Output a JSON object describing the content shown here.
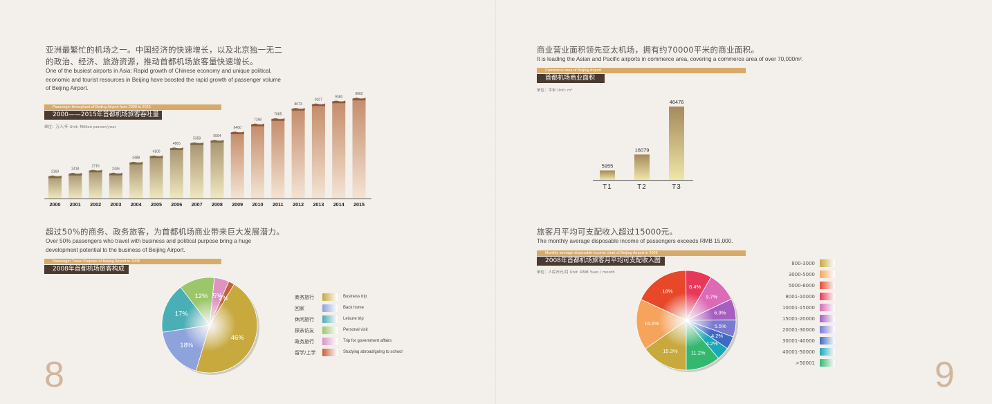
{
  "page_left": {
    "number": "8",
    "section1": {
      "cn": "亚洲最繁忙的机场之一。中国经济的快速增长，以及北京独一无二的政治、经济、旅游资源，推动首都机场旅客量快速增长。",
      "en": "One of the busiest airports in Asia: Rapid growth of Chinese economy and unique political, economic and tourist resources in Beijing have boosted the rapid growth of passenger volume of Beijing Airport.",
      "bar_en": "Passenger throughput of Beijing Airport from 2000 to 2015",
      "bar_cn": "2000——2015年首都机场旅客吞吐量",
      "unit": "单位：万人/年  Unit: Million person/year"
    },
    "section2": {
      "cn": "超过50%的商务、政务旅客，为首都机场商业带来巨大发展潜力。",
      "en": "Over 50% passengers who travel with business and political purpose bring a huge development potential to the business of Beijing Airport.",
      "bar_en": "Passenger Travel Purpose of Beijing Airport in 2008",
      "bar_cn": "2008年首都机场旅客构成"
    }
  },
  "page_right": {
    "number": "9",
    "section1": {
      "cn": "商业营业面积领先亚太机场，拥有约70000平米的商业面积。",
      "en": "It is leading the Asian and Pacific airports in commerce area, covering a commerce area of over 70,000m².",
      "bar_en": "Commerce area of Beijing Airport",
      "bar_cn": "首都机场商业面积",
      "unit": "单位：平米  Unit: m²"
    },
    "section2": {
      "cn": "旅客月平均可支配收入超过15000元。",
      "en": "The monthly average disposable income of passengers exceeds RMB 15,000.",
      "bar_en": "Monthly average disposable income chart of Beijing Airport in 2008",
      "bar_cn": "2008年首都机场旅客月平均可支配收入图",
      "unit": "单位：人民币元/月  Unit: RMB Yuan / month"
    }
  },
  "chart_data": [
    {
      "type": "bar",
      "categories": [
        "2000",
        "2001",
        "2002",
        "2003",
        "2004",
        "2005",
        "2006",
        "2007",
        "2008",
        "2009",
        "2010",
        "2011",
        "2012",
        "2013",
        "2014",
        "2015"
      ],
      "values": [
        2169,
        2418,
        2716,
        2436,
        3488,
        4100,
        4865,
        5358,
        5594,
        6400,
        7168,
        7685,
        8673,
        9107,
        9380,
        9662
      ],
      "ylim": [
        0,
        10000
      ]
    },
    {
      "type": "bar",
      "categories": [
        "T1",
        "T2",
        "T3"
      ],
      "values": [
        5955,
        16079,
        46476
      ],
      "ylim": [
        0,
        50000
      ]
    },
    {
      "type": "pie",
      "slices": [
        {
          "label_cn": "商务旅行",
          "label_en": "Business trip",
          "value": 46,
          "text": "46%",
          "color": "#c7a93e"
        },
        {
          "label_cn": "回家",
          "label_en": "Back home",
          "value": 18,
          "text": "18%",
          "color": "#8ea2dc"
        },
        {
          "label_cn": "休闲旅行",
          "label_en": "Leisure trip",
          "value": 17,
          "text": "17%",
          "color": "#4aaeb6"
        },
        {
          "label_cn": "探亲访友",
          "label_en": "Personal visit",
          "value": 12,
          "text": "12%",
          "color": "#9cc66a"
        },
        {
          "label_cn": "政务旅行",
          "label_en": "Trip for government affairs",
          "value": 5,
          "text": "5%",
          "color": "#dc94c4"
        },
        {
          "label_cn": "留学/上学",
          "label_en": "Studying abroad/going to school",
          "value": 2,
          "text": "2%",
          "color": "#c8603a"
        }
      ]
    },
    {
      "type": "pie",
      "slices": [
        {
          "label": "800-3000",
          "value": 15.3,
          "text": "15.3%",
          "color": "#c7a93e"
        },
        {
          "label": "3000-5000",
          "value": 16.6,
          "text": "16.6%",
          "color": "#f6a45c"
        },
        {
          "label": "5000-8000",
          "value": 18,
          "text": "18%",
          "color": "#e8482a"
        },
        {
          "label": "8001-10000",
          "value": 8.4,
          "text": "8.4%",
          "color": "#e8385a"
        },
        {
          "label": "10001-15000",
          "value": 9.7,
          "text": "9.7%",
          "color": "#dc6ab6"
        },
        {
          "label": "15001-20000",
          "value": 6.9,
          "text": "6.9%",
          "color": "#a65ec0"
        },
        {
          "label": "20001-30000",
          "value": 5.5,
          "text": "5.5%",
          "color": "#7a7ad0"
        },
        {
          "label": "30001-40000",
          "value": 4.2,
          "text": "4.2%",
          "color": "#3e6ac4"
        },
        {
          "label": "40001-50000",
          "value": 4.2,
          "text": "4.2%",
          "color": "#1aa8b8"
        },
        {
          "label": ">50001",
          "value": 11.2,
          "text": "11.2%",
          "color": "#34b870"
        }
      ]
    }
  ]
}
